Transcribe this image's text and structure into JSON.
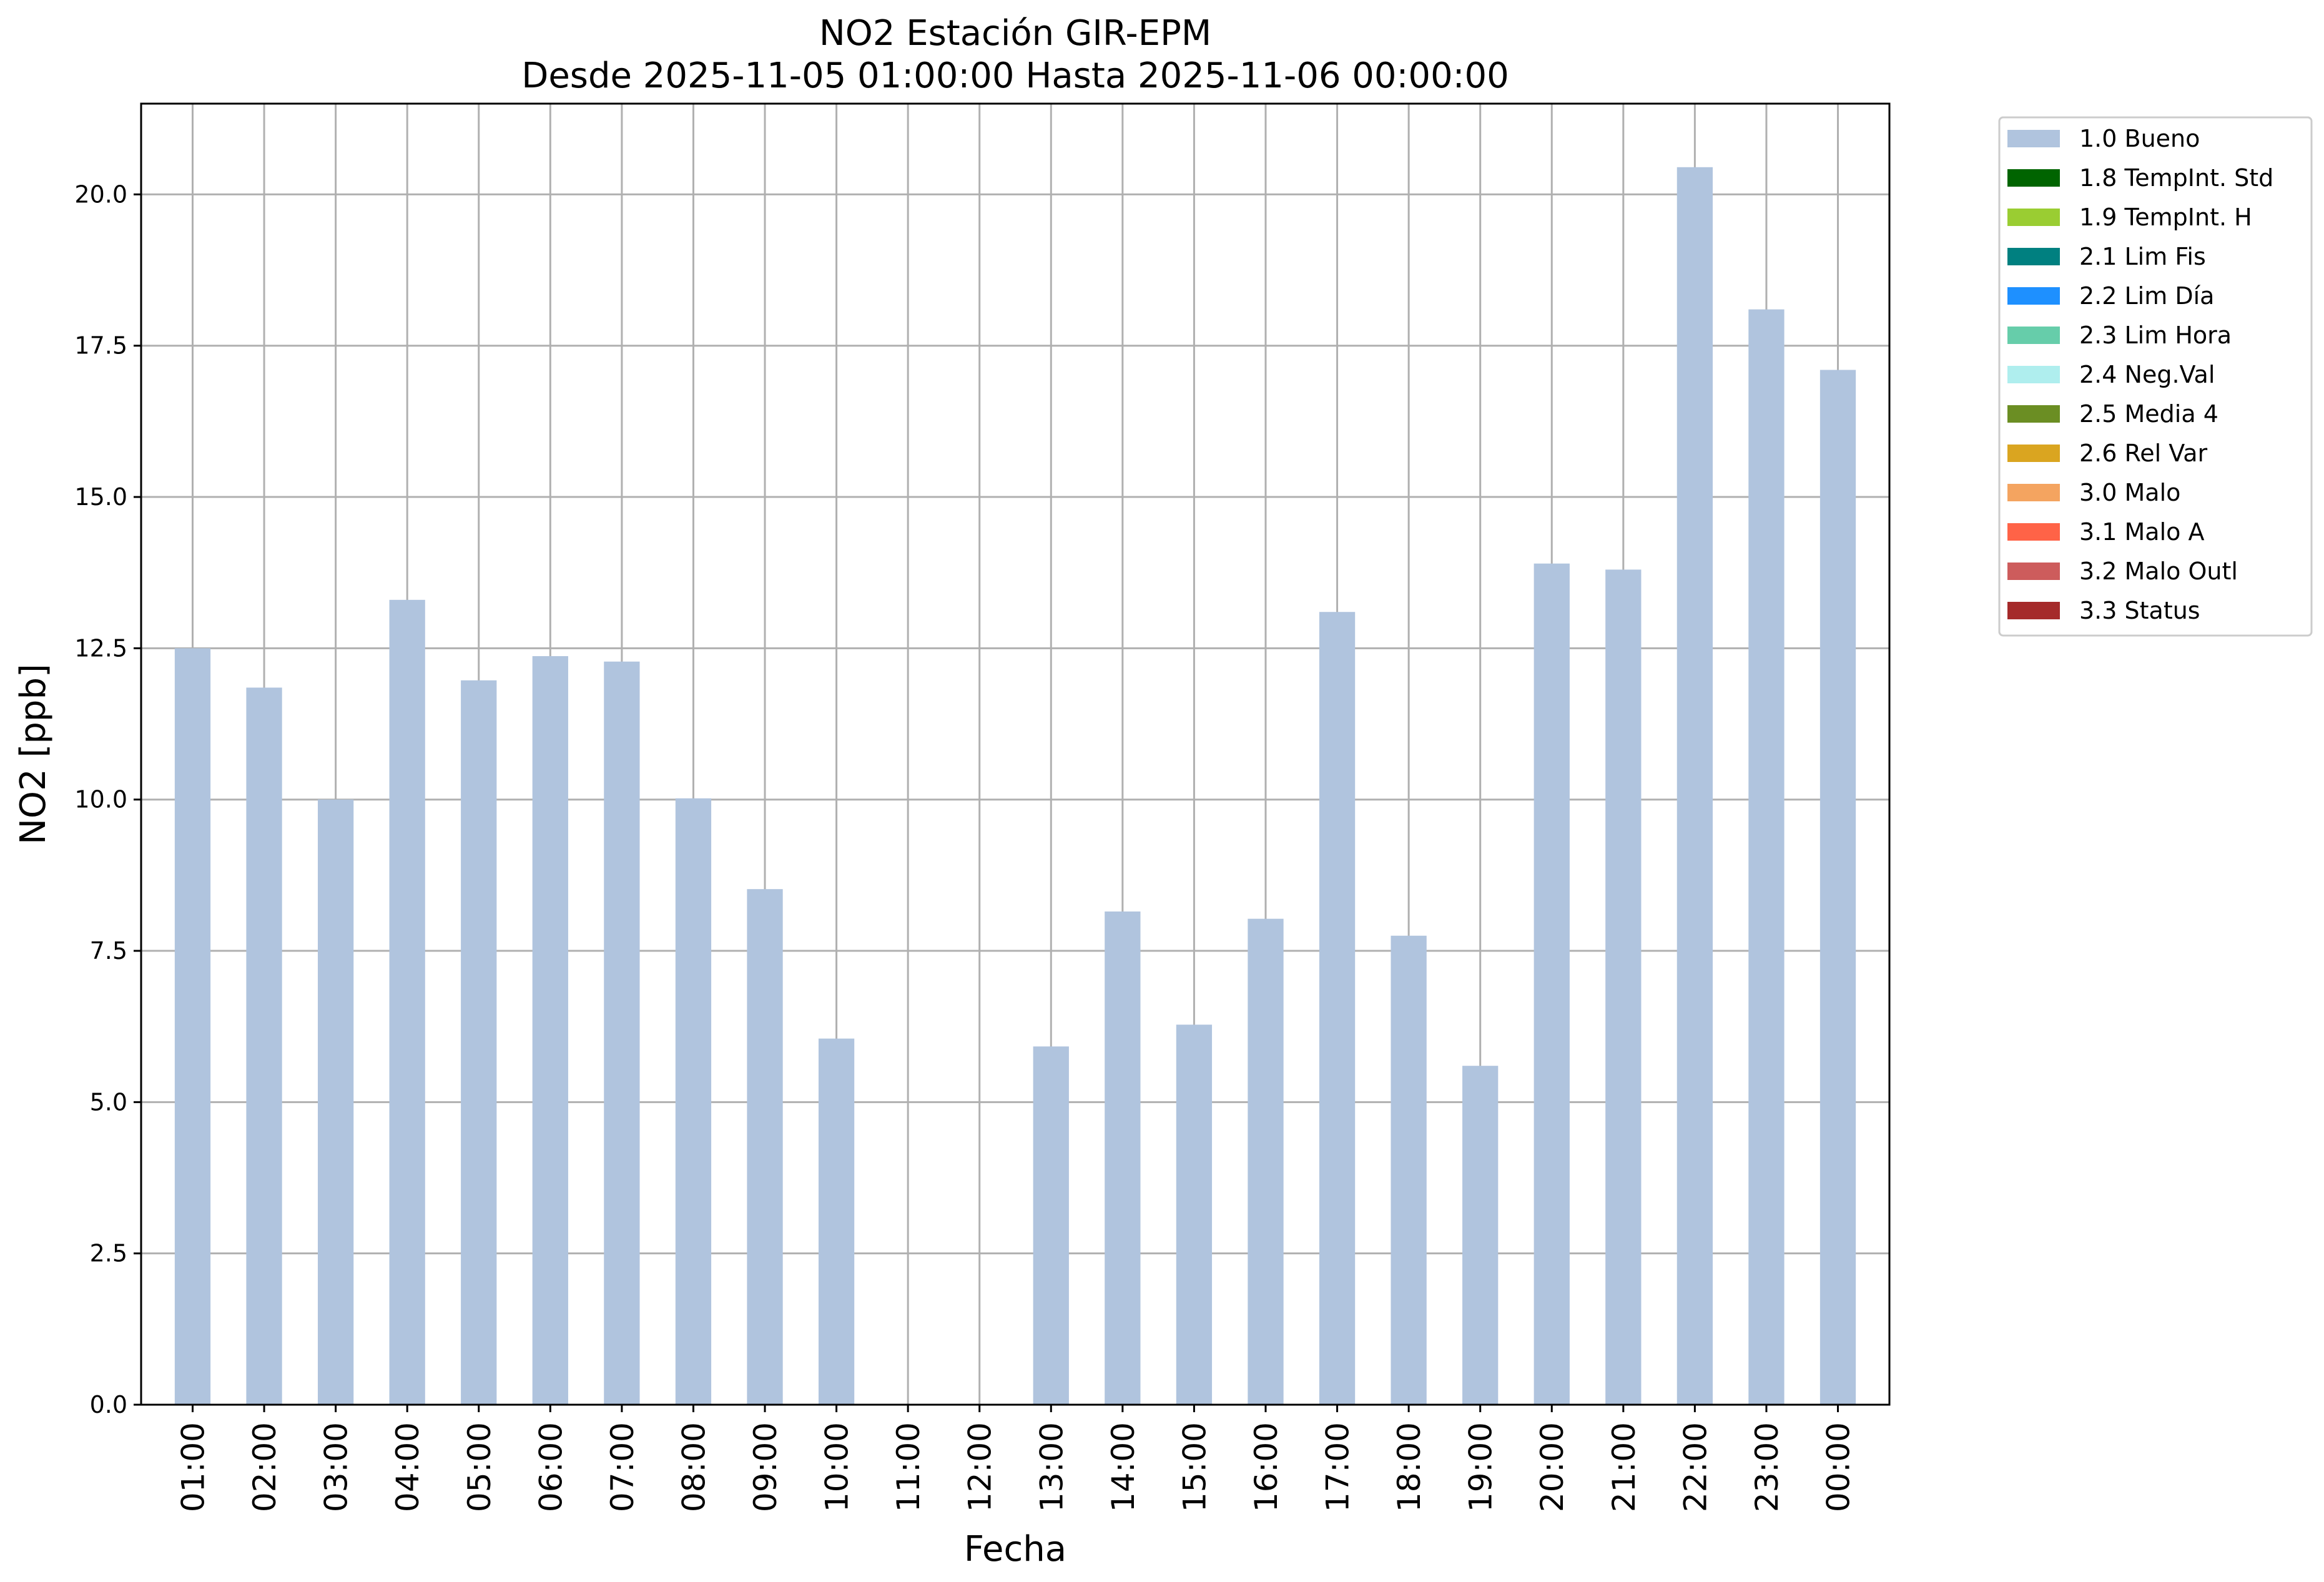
{
  "chart_data": {
    "type": "bar",
    "title": "NO2 Estación GIR-EPM",
    "subtitle": "Desde 2025-11-05 01:00:00 Hasta 2025-11-06 00:00:00",
    "xlabel": "Fecha",
    "ylabel": "NO2 [ppb]",
    "ylim": [
      0,
      21.5
    ],
    "yticks": [
      "0.0",
      "2.5",
      "5.0",
      "7.5",
      "10.0",
      "12.5",
      "15.0",
      "17.5",
      "20.0"
    ],
    "categories": [
      "01:00",
      "02:00",
      "03:00",
      "04:00",
      "05:00",
      "06:00",
      "07:00",
      "08:00",
      "09:00",
      "10:00",
      "11:00",
      "12:00",
      "13:00",
      "14:00",
      "15:00",
      "16:00",
      "17:00",
      "18:00",
      "19:00",
      "20:00",
      "21:00",
      "22:00",
      "23:00",
      "00:00"
    ],
    "series": [
      {
        "name": "1.0 Bueno",
        "color": "#b0c4de",
        "values": [
          12.5,
          11.85,
          10.0,
          13.3,
          11.97,
          12.37,
          12.28,
          10.02,
          8.52,
          6.05,
          null,
          null,
          5.92,
          8.15,
          6.28,
          8.03,
          13.1,
          7.75,
          5.6,
          13.9,
          13.8,
          20.45,
          18.1,
          17.1
        ]
      }
    ],
    "grid": true,
    "legend_position": "outside-top-right",
    "legend": [
      {
        "label": "1.0 Bueno",
        "color": "#b0c4de"
      },
      {
        "label": "1.8 TempInt. Std",
        "color": "#006400"
      },
      {
        "label": "1.9 TempInt. H",
        "color": "#9acd32"
      },
      {
        "label": "2.1 Lim Fis",
        "color": "#008080"
      },
      {
        "label": "2.2 Lim Día",
        "color": "#1e90ff"
      },
      {
        "label": "2.3 Lim Hora",
        "color": "#66cdaa"
      },
      {
        "label": "2.4 Neg.Val",
        "color": "#afeeee"
      },
      {
        "label": "2.5 Media 4",
        "color": "#6b8e23"
      },
      {
        "label": "2.6 Rel Var",
        "color": "#daa520"
      },
      {
        "label": "3.0 Malo",
        "color": "#f4a460"
      },
      {
        "label": "3.1 Malo A",
        "color": "#ff6347"
      },
      {
        "label": "3.2 Malo Outl",
        "color": "#cd5c5c"
      },
      {
        "label": "3.3 Status",
        "color": "#a52a2a"
      }
    ]
  }
}
